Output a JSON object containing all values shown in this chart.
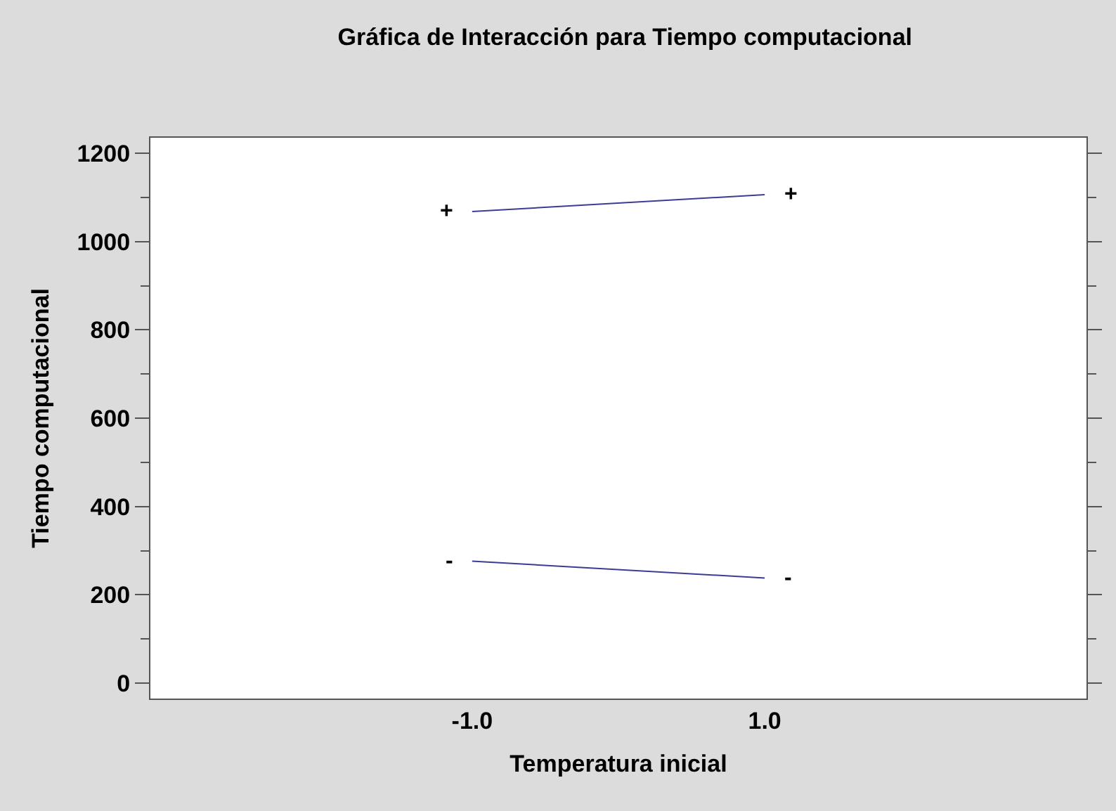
{
  "chart_data": {
    "type": "line",
    "title": "Gráfica de Interacción para Tiempo computacional",
    "xlabel": "Temperatura inicial",
    "ylabel": "Tiempo computacional",
    "x": [
      -1,
      1
    ],
    "series": [
      {
        "name": "+",
        "color": "#3c3c96",
        "values": [
          1068,
          1106
        ]
      },
      {
        "name": "-",
        "color": "#3c3c96",
        "values": [
          276,
          238
        ]
      }
    ],
    "xlim": [
      -3.2,
      3.2
    ],
    "xticks": [
      {
        "value": -1,
        "label": "-1.0"
      },
      {
        "value": 1,
        "label": "1.0"
      }
    ],
    "ylim": [
      -35,
      1235
    ],
    "yticks": [
      0,
      200,
      400,
      600,
      800,
      1000,
      1200
    ],
    "legend": false,
    "marker": "none",
    "line_style": "solid"
  }
}
